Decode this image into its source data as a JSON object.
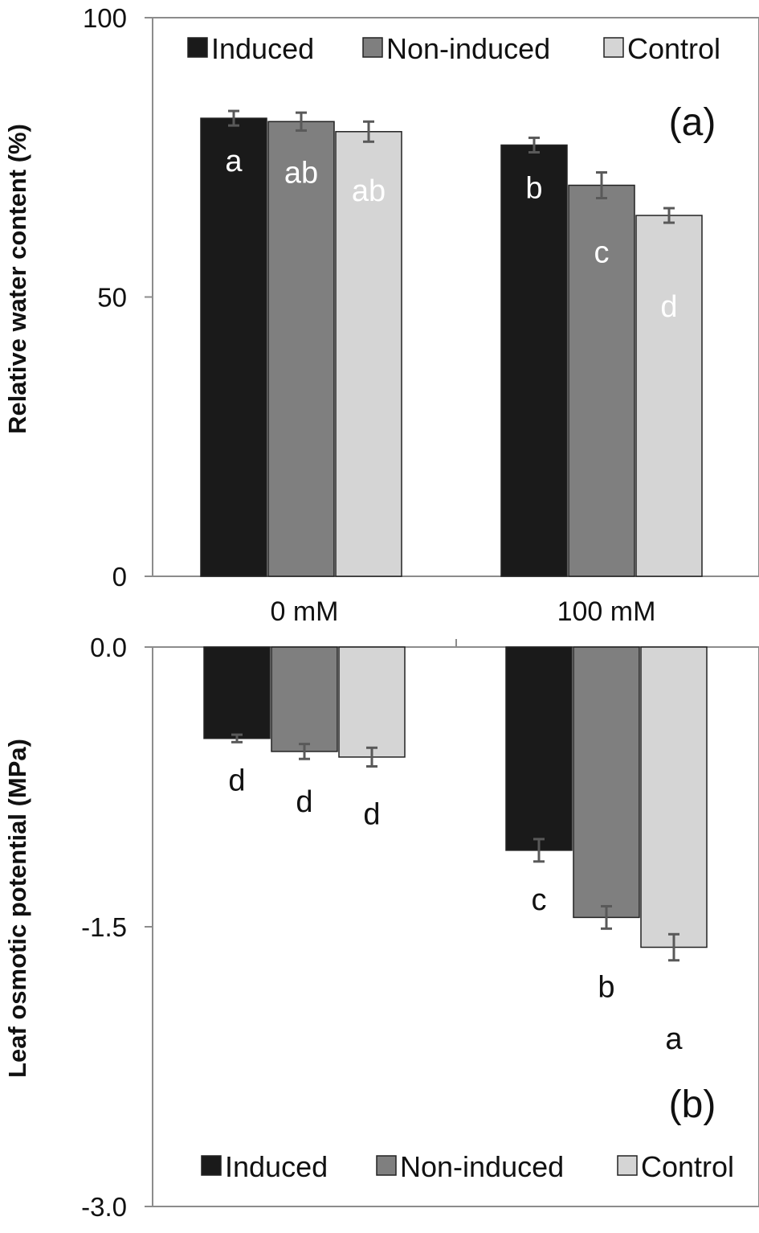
{
  "colors": {
    "induced": "#1a1a1a",
    "non_induced": "#7f7f7f",
    "control": "#d5d5d5",
    "axis": "#8c8c8c",
    "error_bar": "#595959"
  },
  "chart_data": [
    {
      "type": "bar",
      "panel_label": "(a)",
      "ylabel": "Relative water content  (%)",
      "xlabel": "",
      "ylim": [
        0,
        100
      ],
      "yticks": [
        "100",
        "50",
        "0"
      ],
      "categories": [
        "0 mM",
        "100 mM"
      ],
      "legend": [
        "Induced",
        "Non-induced",
        "Control"
      ],
      "legend_position": "top",
      "grid": false,
      "series": [
        {
          "name": "Induced",
          "values": [
            82,
            77.2
          ],
          "errors": [
            1.3,
            1.3
          ],
          "letters": [
            "a",
            "b"
          ]
        },
        {
          "name": "Non-induced",
          "values": [
            81.4,
            70
          ],
          "errors": [
            1.6,
            2.3
          ],
          "letters": [
            "ab",
            "c"
          ]
        },
        {
          "name": "Control",
          "values": [
            79.6,
            64.6
          ],
          "errors": [
            1.8,
            1.3
          ],
          "letters": [
            "ab",
            "d"
          ]
        }
      ]
    },
    {
      "type": "bar",
      "panel_label": "(b)",
      "ylabel": "Leaf osmotic potential (MPa)",
      "xlabel": "",
      "ylim": [
        -3.0,
        0.0
      ],
      "yticks": [
        "0.0",
        "-1.5",
        "-3.0"
      ],
      "categories": [
        "0 mM",
        "100 mM"
      ],
      "legend": [
        "Induced",
        "Non-induced",
        "Control"
      ],
      "legend_position": "bottom",
      "grid": false,
      "series": [
        {
          "name": "Induced",
          "values": [
            -0.49,
            -1.09
          ],
          "errors": [
            0.02,
            0.06
          ],
          "letters": [
            "d",
            "c"
          ]
        },
        {
          "name": "Non-induced",
          "values": [
            -0.56,
            -1.45
          ],
          "errors": [
            0.04,
            0.06
          ],
          "letters": [
            "d",
            "b"
          ]
        },
        {
          "name": "Control",
          "values": [
            -0.59,
            -1.61
          ],
          "errors": [
            0.05,
            0.07
          ],
          "letters": [
            "d",
            "a"
          ]
        }
      ]
    }
  ]
}
